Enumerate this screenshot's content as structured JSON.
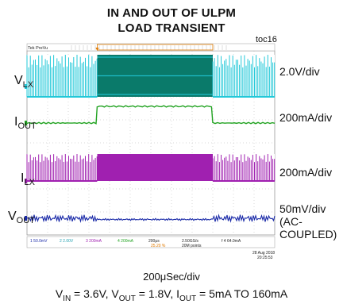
{
  "title_line1": "IN AND OUT OF ULPM",
  "title_line2": "LOAD TRANSIENT",
  "figure_id": "toc16",
  "scope_header": {
    "brand": "Tek",
    "mode": "PreVu"
  },
  "scope_status": {
    "ch1": "50.0mV",
    "ch2": "2.00V",
    "ch3": "200mA",
    "ch4": "200mA",
    "timebase": "200μs",
    "trigger_pos": "25.20 %",
    "sample_rate": "2.50GS/s",
    "record_length": "20M points",
    "trigger_level": "64.0mA",
    "date": "28 Aug 2018",
    "time": "20:25:53"
  },
  "chart_data": {
    "type": "line",
    "subtitle": "200μSec/div",
    "conditions": {
      "v_in": "3.6V",
      "v_out": "1.8V",
      "i_out": "5mA TO 160mA"
    },
    "traces": [
      {
        "name": "VLX",
        "label_main": "V",
        "label_sub": "LX",
        "scale": "2.0V/div",
        "color": "#22c8d8",
        "fill": "#0a7a6a",
        "kind": "switching",
        "pattern": "burst-continuous-burst"
      },
      {
        "name": "IOUT",
        "label_main": "I",
        "label_sub": "OUT",
        "scale": "200mA/div",
        "color": "#22a322",
        "kind": "step",
        "low": "5mA",
        "high": "160mA"
      },
      {
        "name": "ILX",
        "label_main": "I",
        "label_sub": "LX",
        "scale": "200mA/div",
        "color": "#a020b0",
        "fill": "#a020b0",
        "kind": "switching",
        "pattern": "burst-continuous-burst"
      },
      {
        "name": "VOUT",
        "label_main": "V",
        "label_sub": "OUT",
        "scale_line1": "50mV/div",
        "scale_line2": "(AC-",
        "scale_line3": "COUPLED)",
        "color": "#1a2aa8",
        "kind": "ripple"
      }
    ],
    "step_window_div": [
      3.4,
      9.0
    ],
    "x_divisions": 12,
    "y_divisions": 8
  },
  "bottom_conditions": {
    "vin_label": "V",
    "vin_sub": "IN",
    "vin_val": " = 3.6V, ",
    "vout_label": "V",
    "vout_sub": "OUT",
    "vout_val": " = 1.8V, ",
    "iout_label": "I",
    "iout_sub": "OUT",
    "iout_val": " = 5mA TO 160mA"
  }
}
